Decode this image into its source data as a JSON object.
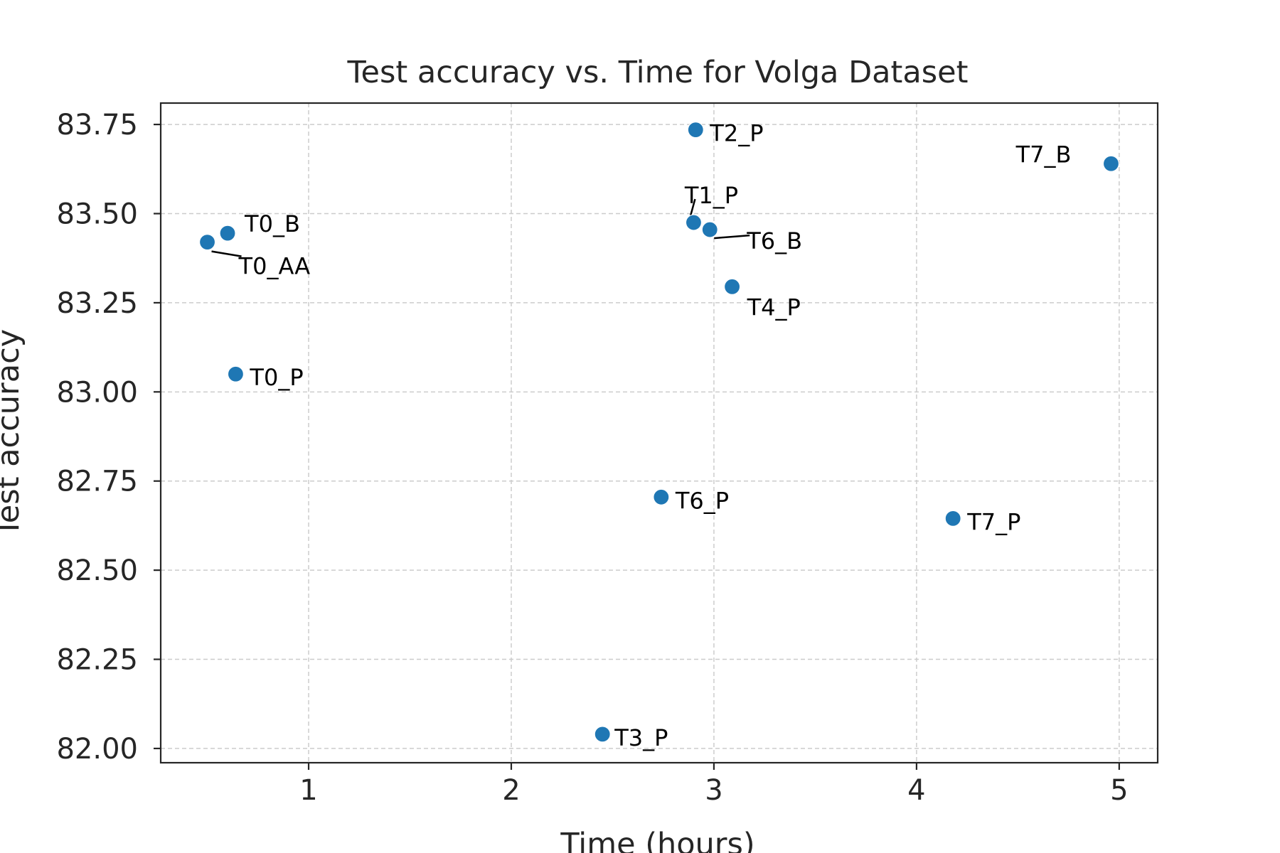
{
  "chart_data": {
    "type": "scatter",
    "title": "Test accuracy vs. Time for Volga Dataset",
    "xlabel": "Time (hours)",
    "ylabel": "Test accuracy",
    "xlim": [
      0.27,
      5.19
    ],
    "ylim": [
      81.96,
      83.81
    ],
    "xticks": [
      1,
      2,
      3,
      4,
      5
    ],
    "yticks": [
      82.0,
      82.25,
      82.5,
      82.75,
      83.0,
      83.25,
      83.5,
      83.75
    ],
    "ytick_labels": [
      "82.00",
      "82.25",
      "82.50",
      "82.75",
      "83.00",
      "83.25",
      "83.50",
      "83.75"
    ],
    "xtick_labels": [
      "1",
      "2",
      "3",
      "4",
      "5"
    ],
    "grid": true,
    "marker_color": "#1f77b4",
    "points": [
      {
        "label": "T0_AA",
        "x": 0.5,
        "y": 83.42
      },
      {
        "label": "T0_B",
        "x": 0.6,
        "y": 83.445
      },
      {
        "label": "T0_P",
        "x": 0.64,
        "y": 83.05
      },
      {
        "label": "T1_P",
        "x": 2.9,
        "y": 83.475
      },
      {
        "label": "T6_B",
        "x": 2.98,
        "y": 83.455
      },
      {
        "label": "T2_P",
        "x": 2.91,
        "y": 83.735
      },
      {
        "label": "T4_P",
        "x": 3.09,
        "y": 83.295
      },
      {
        "label": "T6_P",
        "x": 2.74,
        "y": 82.705
      },
      {
        "label": "T3_P",
        "x": 2.45,
        "y": 82.04
      },
      {
        "label": "T7_P",
        "x": 4.18,
        "y": 82.645
      },
      {
        "label": "T7_B",
        "x": 4.96,
        "y": 83.64
      }
    ]
  }
}
